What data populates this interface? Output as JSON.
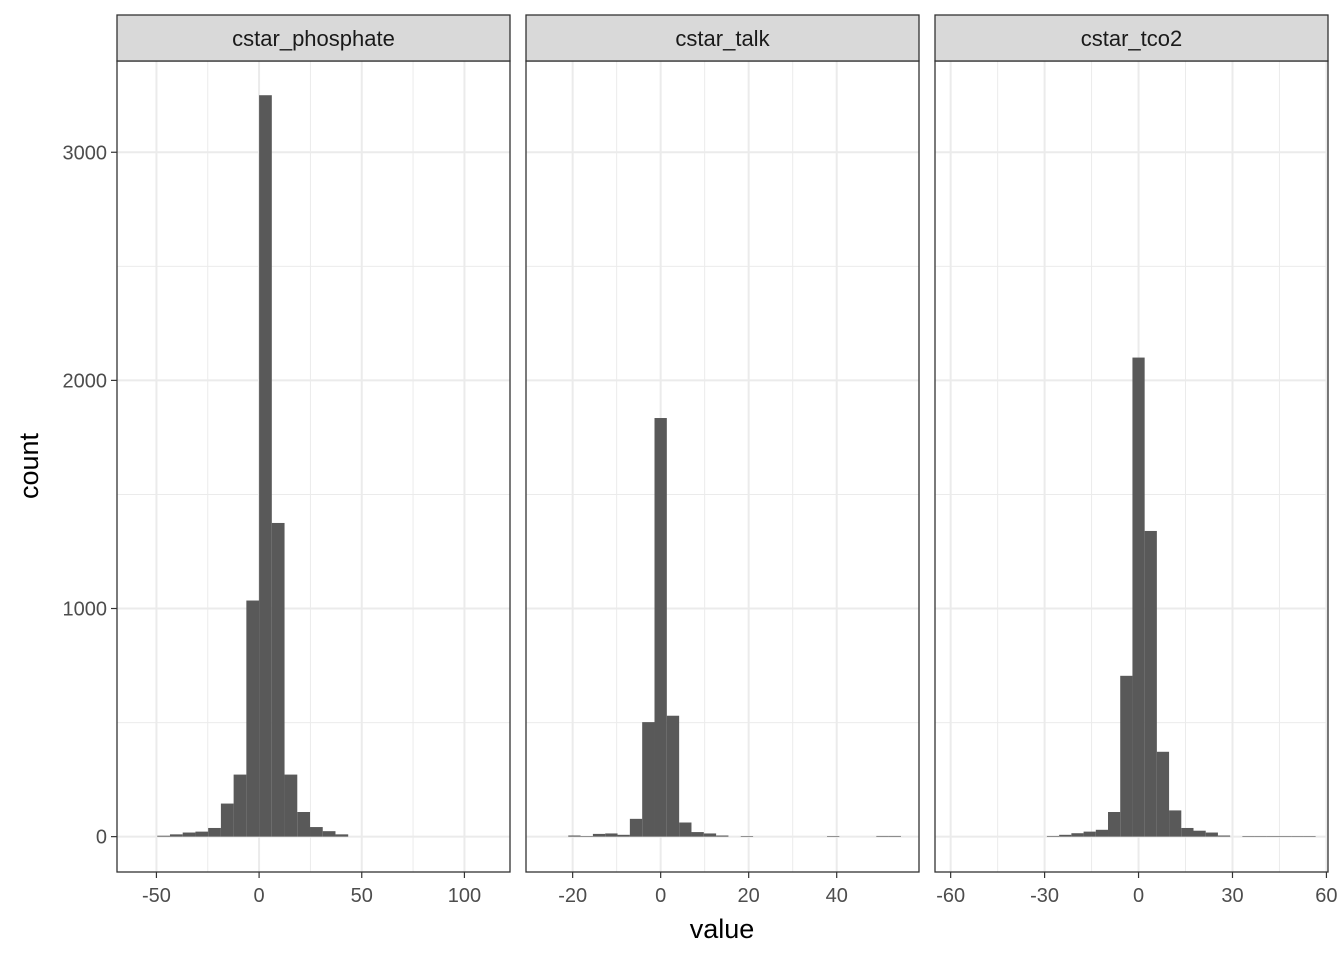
{
  "chart_data": {
    "type": "bar",
    "subtype": "faceted-histogram",
    "xlabel": "value",
    "ylabel": "count",
    "ylim": [
      -155,
      3400
    ],
    "y_ticks": [
      0,
      1000,
      2000,
      3000
    ],
    "y_tick_labels": [
      "0",
      "1000",
      "2000",
      "3000"
    ],
    "grid": true,
    "colors": {
      "bar": "#595959",
      "strip_fill": "#d9d9d9",
      "grid": "#ebebeb",
      "border": "#333333"
    },
    "facets": [
      {
        "name": "cstar_phosphate",
        "xlim": [
          -69.2,
          122.2
        ],
        "x_ticks": [
          -50,
          0,
          50,
          100
        ],
        "x_tick_labels": [
          "-50",
          "0",
          "50",
          "100"
        ],
        "binwidth": 6.2,
        "bins": [
          {
            "x0": -49.6,
            "count": 4
          },
          {
            "x0": -43.4,
            "count": 10
          },
          {
            "x0": -37.2,
            "count": 18
          },
          {
            "x0": -31.0,
            "count": 22
          },
          {
            "x0": -24.8,
            "count": 38
          },
          {
            "x0": -18.6,
            "count": 145
          },
          {
            "x0": -12.4,
            "count": 272
          },
          {
            "x0": -6.2,
            "count": 1035
          },
          {
            "x0": 0.0,
            "count": 3250
          },
          {
            "x0": 6.2,
            "count": 1375
          },
          {
            "x0": 12.4,
            "count": 272
          },
          {
            "x0": 18.6,
            "count": 108
          },
          {
            "x0": 24.8,
            "count": 42
          },
          {
            "x0": 31.0,
            "count": 24
          },
          {
            "x0": 37.2,
            "count": 10
          }
        ]
      },
      {
        "name": "cstar_talk",
        "xlim": [
          -30.6,
          58.7
        ],
        "x_ticks": [
          -20,
          0,
          20,
          40
        ],
        "x_tick_labels": [
          "-20",
          "0",
          "20",
          "40"
        ],
        "binwidth": 2.8,
        "bins": [
          {
            "x0": -21.0,
            "count": 5
          },
          {
            "x0": -18.2,
            "count": 2
          },
          {
            "x0": -15.4,
            "count": 12
          },
          {
            "x0": -12.6,
            "count": 14
          },
          {
            "x0": -9.8,
            "count": 8
          },
          {
            "x0": -7.0,
            "count": 78
          },
          {
            "x0": -4.2,
            "count": 502
          },
          {
            "x0": -1.4,
            "count": 1835
          },
          {
            "x0": 1.4,
            "count": 530
          },
          {
            "x0": 4.2,
            "count": 62
          },
          {
            "x0": 7.0,
            "count": 20
          },
          {
            "x0": 9.8,
            "count": 14
          },
          {
            "x0": 12.6,
            "count": 5
          },
          {
            "x0": 18.2,
            "count": 2
          },
          {
            "x0": 37.8,
            "count": 2
          },
          {
            "x0": 49.0,
            "count": 3
          },
          {
            "x0": 51.8,
            "count": 3
          }
        ]
      },
      {
        "name": "cstar_tco2",
        "xlim": [
          -65.0,
          60.5
        ],
        "x_ticks": [
          -60,
          -30,
          0,
          30,
          60
        ],
        "x_tick_labels": [
          "-60",
          "-30",
          "0",
          "30",
          "60"
        ],
        "binwidth": 3.9,
        "bins": [
          {
            "x0": -29.25,
            "count": 3
          },
          {
            "x0": -25.35,
            "count": 8
          },
          {
            "x0": -21.45,
            "count": 15
          },
          {
            "x0": -17.55,
            "count": 22
          },
          {
            "x0": -13.65,
            "count": 30
          },
          {
            "x0": -9.75,
            "count": 108
          },
          {
            "x0": -5.85,
            "count": 705
          },
          {
            "x0": -1.95,
            "count": 2100
          },
          {
            "x0": 1.95,
            "count": 1340
          },
          {
            "x0": 5.85,
            "count": 372
          },
          {
            "x0": 9.75,
            "count": 115
          },
          {
            "x0": 13.65,
            "count": 38
          },
          {
            "x0": 17.55,
            "count": 26
          },
          {
            "x0": 21.45,
            "count": 18
          },
          {
            "x0": 25.35,
            "count": 5
          },
          {
            "x0": 33.15,
            "count": 2
          },
          {
            "x0": 37.05,
            "count": 2
          },
          {
            "x0": 40.95,
            "count": 2
          },
          {
            "x0": 44.85,
            "count": 2
          },
          {
            "x0": 48.75,
            "count": 2
          },
          {
            "x0": 52.65,
            "count": 2
          }
        ]
      }
    ]
  }
}
